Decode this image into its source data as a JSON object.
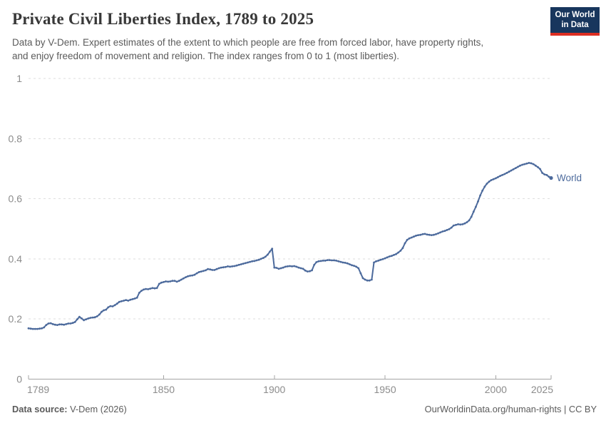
{
  "header": {
    "title": "Private Civil Liberties Index, 1789 to 2025",
    "subtitle_line1": "Data by V-Dem. Expert estimates of the extent to which people are free from forced labor, have property rights,",
    "subtitle_line2": "and enjoy freedom of movement and religion. The index ranges from 0 to 1 (most liberties)."
  },
  "logo": {
    "line1": "Our World",
    "line2": "in Data",
    "bg_color": "#18365D",
    "accent_color": "#DC2E22"
  },
  "chart_data": {
    "type": "line",
    "title": "Private Civil Liberties Index, 1789 to 2025",
    "xlabel": "",
    "ylabel": "",
    "grid": "dashed-horizontal",
    "legend_position": "end-of-line-label",
    "x": {
      "start_year": 1789,
      "end_year": 2025,
      "step": 1,
      "ticks": [
        1789,
        1850,
        1900,
        1950,
        2000,
        2025
      ]
    },
    "y": {
      "min": 0,
      "max": 1,
      "ticks": [
        0,
        0.2,
        0.4,
        0.6,
        0.8,
        1
      ],
      "tick_labels": [
        "0",
        "0.2",
        "0.4",
        "0.6",
        "0.8",
        "1"
      ]
    },
    "series": [
      {
        "name": "World",
        "color": "#4C6A9C",
        "values": [
          0.169,
          0.168,
          0.167,
          0.167,
          0.167,
          0.168,
          0.169,
          0.172,
          0.18,
          0.185,
          0.186,
          0.183,
          0.181,
          0.18,
          0.182,
          0.182,
          0.181,
          0.183,
          0.185,
          0.185,
          0.187,
          0.19,
          0.199,
          0.207,
          0.202,
          0.196,
          0.199,
          0.202,
          0.204,
          0.205,
          0.206,
          0.209,
          0.215,
          0.224,
          0.229,
          0.231,
          0.239,
          0.243,
          0.242,
          0.246,
          0.251,
          0.257,
          0.259,
          0.261,
          0.263,
          0.261,
          0.264,
          0.266,
          0.268,
          0.271,
          0.287,
          0.294,
          0.298,
          0.3,
          0.299,
          0.301,
          0.303,
          0.302,
          0.303,
          0.317,
          0.321,
          0.323,
          0.325,
          0.324,
          0.325,
          0.327,
          0.327,
          0.324,
          0.327,
          0.331,
          0.335,
          0.339,
          0.342,
          0.344,
          0.345,
          0.347,
          0.352,
          0.356,
          0.358,
          0.36,
          0.362,
          0.366,
          0.365,
          0.363,
          0.363,
          0.366,
          0.369,
          0.371,
          0.372,
          0.373,
          0.375,
          0.374,
          0.375,
          0.376,
          0.378,
          0.38,
          0.382,
          0.384,
          0.386,
          0.388,
          0.39,
          0.392,
          0.393,
          0.395,
          0.397,
          0.4,
          0.403,
          0.407,
          0.414,
          0.424,
          0.434,
          0.371,
          0.37,
          0.367,
          0.369,
          0.371,
          0.374,
          0.375,
          0.376,
          0.375,
          0.376,
          0.374,
          0.371,
          0.369,
          0.367,
          0.361,
          0.358,
          0.359,
          0.362,
          0.38,
          0.389,
          0.392,
          0.393,
          0.394,
          0.394,
          0.396,
          0.396,
          0.395,
          0.395,
          0.394,
          0.392,
          0.39,
          0.388,
          0.387,
          0.385,
          0.382,
          0.379,
          0.377,
          0.374,
          0.369,
          0.352,
          0.336,
          0.331,
          0.328,
          0.328,
          0.331,
          0.388,
          0.392,
          0.394,
          0.397,
          0.399,
          0.402,
          0.405,
          0.408,
          0.41,
          0.413,
          0.416,
          0.421,
          0.427,
          0.436,
          0.452,
          0.463,
          0.468,
          0.471,
          0.474,
          0.477,
          0.479,
          0.48,
          0.482,
          0.483,
          0.481,
          0.48,
          0.479,
          0.48,
          0.482,
          0.485,
          0.488,
          0.491,
          0.493,
          0.496,
          0.499,
          0.504,
          0.511,
          0.513,
          0.515,
          0.514,
          0.515,
          0.518,
          0.522,
          0.528,
          0.54,
          0.557,
          0.573,
          0.591,
          0.611,
          0.627,
          0.64,
          0.65,
          0.657,
          0.662,
          0.665,
          0.668,
          0.672,
          0.676,
          0.679,
          0.682,
          0.686,
          0.69,
          0.694,
          0.698,
          0.702,
          0.706,
          0.71,
          0.713,
          0.715,
          0.717,
          0.719,
          0.718,
          0.715,
          0.71,
          0.705,
          0.699,
          0.686,
          0.681,
          0.679,
          0.673,
          0.669
        ]
      }
    ]
  },
  "footer": {
    "source_label": "Data source:",
    "source_value": "V-Dem (2026)",
    "right_text": "OurWorldinData.org/human-rights | CC BY"
  },
  "colors": {
    "line": "#4C6A9C",
    "gridline": "#dedede",
    "axis": "#a5a5a5",
    "tick_label": "#8c8c8c",
    "title": "#383838",
    "subtitle": "#5b5b5b"
  }
}
